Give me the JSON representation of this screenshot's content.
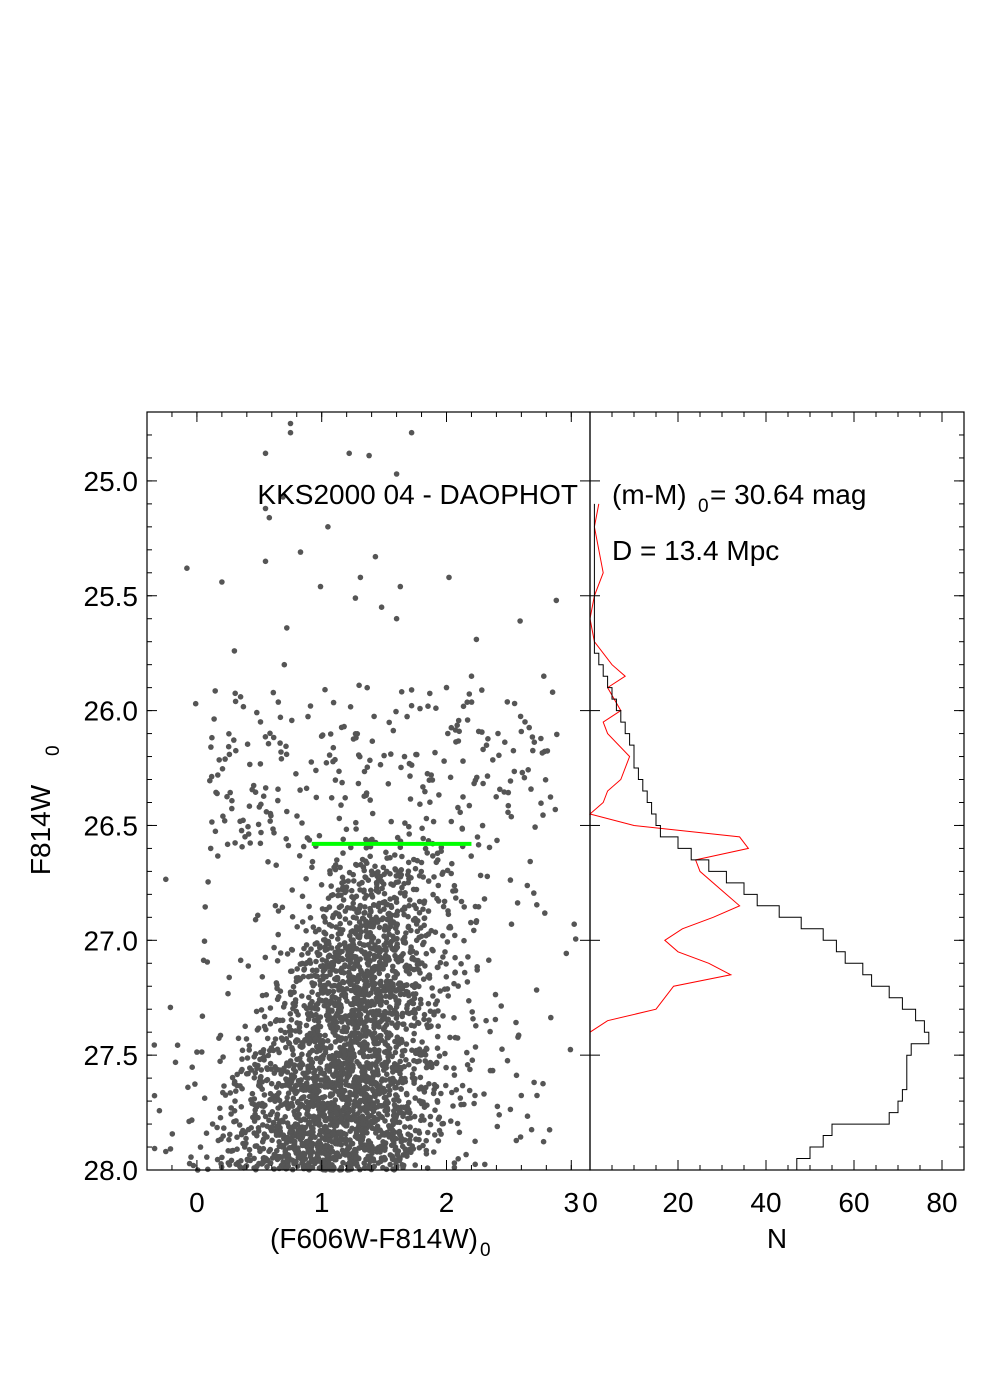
{
  "chart_data": [
    {
      "type": "scatter",
      "panel": "color-magnitude diagram",
      "title": "KKS2000 04 - DAOPHOT",
      "xlabel": "(F606W-F814W)",
      "xlabel_subscript": "0",
      "ylabel": "F814W",
      "ylabel_subscript": "0",
      "xlim": [
        -0.4,
        3.15
      ],
      "ylim": [
        28.0,
        24.7
      ],
      "y_inverted": true,
      "x_ticks": [
        "0",
        "1",
        "2",
        "3"
      ],
      "y_ticks": [
        "25.0",
        "25.5",
        "26.0",
        "26.5",
        "27.0",
        "27.5",
        "28.0"
      ],
      "point_color": "#555555",
      "points_note_count": 3000,
      "trgb_line": {
        "x": [
          0.92,
          2.2
        ],
        "y": 26.58,
        "color": "#00ff00"
      },
      "bright_points": [
        {
          "x": 0.75,
          "y": 24.75
        },
        {
          "x": 0.75,
          "y": 24.79
        },
        {
          "x": 1.72,
          "y": 24.79
        },
        {
          "x": 0.55,
          "y": 24.88
        },
        {
          "x": 1.22,
          "y": 24.88
        },
        {
          "x": 1.38,
          "y": 24.89
        },
        {
          "x": 1.6,
          "y": 24.97
        },
        {
          "x": 0.55,
          "y": 25.12
        },
        {
          "x": 0.58,
          "y": 25.16
        },
        {
          "x": 0.69,
          "y": 25.07
        },
        {
          "x": 1.05,
          "y": 25.2
        },
        {
          "x": 0.83,
          "y": 25.31
        },
        {
          "x": 1.43,
          "y": 25.33
        },
        {
          "x": 0.55,
          "y": 25.35
        },
        {
          "x": -0.08,
          "y": 25.38
        },
        {
          "x": 0.2,
          "y": 25.44
        },
        {
          "x": 0.99,
          "y": 25.46
        },
        {
          "x": 1.31,
          "y": 25.42
        },
        {
          "x": 1.63,
          "y": 25.46
        },
        {
          "x": 2.02,
          "y": 25.42
        },
        {
          "x": 2.88,
          "y": 25.52
        },
        {
          "x": 1.27,
          "y": 25.51
        },
        {
          "x": 1.48,
          "y": 25.55
        },
        {
          "x": 1.6,
          "y": 25.6
        },
        {
          "x": 2.59,
          "y": 25.61
        },
        {
          "x": 0.72,
          "y": 25.64
        },
        {
          "x": 2.24,
          "y": 25.69
        },
        {
          "x": 0.3,
          "y": 25.74
        },
        {
          "x": 0.7,
          "y": 25.8
        },
        {
          "x": 2.2,
          "y": 25.85
        },
        {
          "x": 2.78,
          "y": 25.85
        },
        {
          "x": 2.85,
          "y": 25.92
        },
        {
          "x": 1.3,
          "y": 25.89
        },
        {
          "x": 1.72,
          "y": 25.91
        },
        {
          "x": 2.0,
          "y": 25.9
        },
        {
          "x": 0.35,
          "y": 25.94
        },
        {
          "x": 0.31,
          "y": 25.96
        },
        {
          "x": -0.01,
          "y": 25.97
        },
        {
          "x": 0.91,
          "y": 25.98
        }
      ],
      "faint_clump_center": {
        "x": 1.15,
        "y": 27.55
      },
      "rgb_upper_center": {
        "x": 1.45,
        "y": 26.95
      }
    },
    {
      "type": "line",
      "panel": "luminosity function",
      "title": "(m-M)",
      "title_subscript": "0",
      "title_suffix": " = 30.64 mag",
      "subtitle": "D = 13.4 Mpc",
      "xlabel": "N",
      "xlim": [
        0,
        85
      ],
      "ylim": [
        28.0,
        24.7
      ],
      "x_ticks": [
        "0",
        "20",
        "40",
        "60",
        "80"
      ],
      "series": [
        {
          "style": "step",
          "color": "#000000",
          "y": [
            25.1,
            25.2,
            25.3,
            25.4,
            25.5,
            25.6,
            25.7,
            25.75,
            25.8,
            25.85,
            25.9,
            25.95,
            26.0,
            26.05,
            26.1,
            26.15,
            26.2,
            26.25,
            26.3,
            26.35,
            26.4,
            26.45,
            26.5,
            26.55,
            26.6,
            26.65,
            26.7,
            26.75,
            26.8,
            26.85,
            26.9,
            26.95,
            27.0,
            27.05,
            27.1,
            27.15,
            27.2,
            27.25,
            27.3,
            27.35,
            27.4,
            27.45,
            27.5,
            27.55,
            27.6,
            27.65,
            27.7,
            27.75,
            27.8,
            27.85,
            27.9,
            27.95,
            28.0
          ],
          "values": [
            1,
            1,
            1,
            1,
            1,
            1,
            1,
            2,
            3,
            4,
            5,
            6,
            7,
            8,
            9,
            10,
            10,
            11,
            12,
            13,
            14,
            15,
            16,
            20,
            23,
            27,
            31,
            35,
            38,
            43,
            48,
            53,
            56,
            58,
            62,
            64,
            68,
            71,
            74,
            76,
            77,
            73,
            72,
            72,
            72,
            71,
            70,
            68,
            55,
            53,
            50,
            47,
            46
          ]
        },
        {
          "style": "line",
          "color": "#ff0000",
          "y": [
            25.1,
            25.2,
            25.3,
            25.4,
            25.5,
            25.6,
            25.7,
            25.8,
            25.85,
            25.9,
            26.0,
            26.05,
            26.1,
            26.2,
            26.3,
            26.35,
            26.4,
            26.45,
            26.5,
            26.55,
            26.6,
            26.65,
            26.7,
            26.8,
            26.85,
            26.9,
            26.95,
            27.0,
            27.05,
            27.1,
            27.15,
            27.2,
            27.25,
            27.3,
            27.35,
            27.4,
            27.6
          ],
          "values": [
            2,
            1,
            2,
            3,
            1,
            0,
            1,
            5,
            8,
            4,
            7,
            3,
            4,
            9,
            7,
            4,
            3,
            0,
            10,
            34,
            36,
            24,
            25,
            31,
            34,
            28,
            21,
            17,
            20,
            27,
            32,
            19,
            17,
            15,
            4,
            0,
            0
          ]
        }
      ]
    }
  ]
}
